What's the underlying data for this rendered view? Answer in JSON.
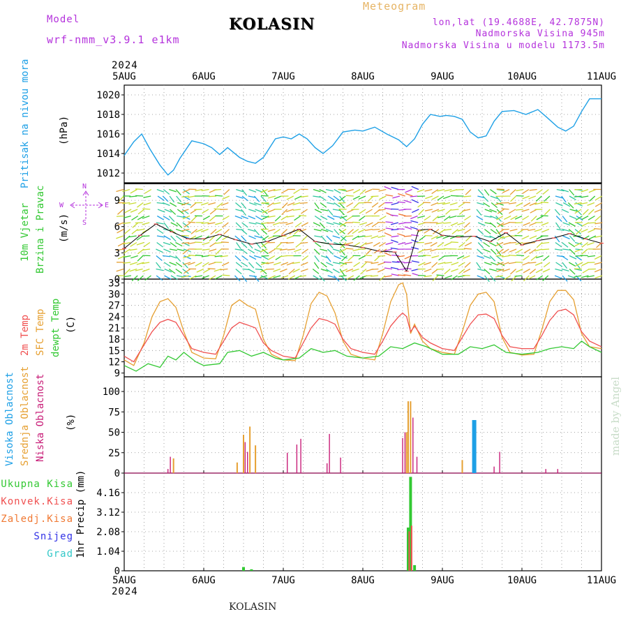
{
  "header": {
    "model_label": "Model",
    "model_name": "wrf-nmm_v3.9.1 e1km",
    "station": "KOLASIN",
    "meteogram_label": "Meteogram",
    "coords": "lon,lat (19.4688E, 42.7875N)",
    "elevation": "Nadmorska Visina 945m",
    "model_elevation": "Nadmorska Visina u modelu 1173.5m"
  },
  "footer": {
    "station": "KOLASIN",
    "watermark": "made by Angel"
  },
  "colors": {
    "pressure": "#1ea0e6",
    "temp2m": "#f05050",
    "sfc": "#e6a032",
    "dewpt": "#32c832",
    "high_cloud": "#1ea0e6",
    "mid_cloud": "#e6a032",
    "low_cloud": "#c81e78",
    "total_precip": "#32c832",
    "conv_precip": "#f05050",
    "frozen_precip": "#f07832",
    "snow": "#3232e6",
    "hail": "#32c8c8",
    "wind_label": "#32c832",
    "wind_sub": "#32c832",
    "compass": "#b432dc"
  },
  "time_axis": {
    "year_top": "2024",
    "year_bottom": "2024",
    "days": [
      "5AUG",
      "6AUG",
      "7AUG",
      "8AUG",
      "9AUG",
      "10AUG",
      "11AUG"
    ]
  },
  "panels": {
    "pressure": {
      "label": "Pritisak na nivou mora",
      "unit": "(hPa)",
      "ticks": [
        "1012",
        "1014",
        "1016",
        "1018",
        "1020"
      ]
    },
    "wind": {
      "label1": "10m Vjetar",
      "label2": "Brzina i Pravac",
      "unit": "(m/s)",
      "compass_n": "N",
      "compass_w": "W",
      "compass_e": "E",
      "compass_s": "S",
      "ticks": [
        "0",
        "3",
        "6",
        "9"
      ]
    },
    "temperature": {
      "label1": "2m Temp",
      "label2": "SFC Temp",
      "label3": "dewpt Temp",
      "unit": "(C)",
      "ticks": [
        "9",
        "12",
        "15",
        "18",
        "21",
        "24",
        "27",
        "30",
        "33"
      ]
    },
    "clouds": {
      "label1": "Visoka Oblacnost",
      "label2": "Srednja Oblacnost",
      "label3": "Niska Oblacnost",
      "unit": "(%)",
      "ticks": [
        "0",
        "25",
        "50",
        "75",
        "100"
      ]
    },
    "precip": {
      "label_unit": "1hr Precip (mm)",
      "legend": [
        "Ukupna Kisa",
        "Konvek.Kisa",
        "Zaledj.Kisa",
        "Snijeg",
        "Grad"
      ],
      "ticks": [
        "0",
        "1.04",
        "2.08",
        "3.12",
        "4.16"
      ]
    }
  },
  "chart_data": [
    {
      "type": "line",
      "title": "Pritisak na nivou mora",
      "ylabel": "(hPa)",
      "ylim": [
        1011,
        1021
      ],
      "x_unit": "day offset from 5AUG 2024 00UTC",
      "series": [
        {
          "x": [
            0,
            0.12,
            0.22,
            0.32,
            0.45,
            0.55,
            0.62,
            0.7,
            0.85,
            1.0,
            1.1,
            1.2,
            1.3,
            1.45,
            1.55,
            1.65,
            1.75,
            1.9,
            2.0,
            2.1,
            2.2,
            2.3,
            2.4,
            2.5,
            2.62,
            2.75,
            2.9,
            3.0,
            3.15,
            3.3,
            3.45,
            3.55,
            3.65,
            3.75,
            3.85,
            3.97,
            4.05,
            4.15,
            4.25,
            4.35,
            4.45,
            4.55,
            4.65,
            4.75,
            4.9,
            5.05,
            5.2,
            5.3,
            5.45,
            5.55,
            5.65,
            5.75,
            5.85,
            6.0
          ],
          "y": [
            1013.8,
            1015.2,
            1016.0,
            1014.5,
            1012.8,
            1011.8,
            1012.3,
            1013.5,
            1015.3,
            1015.0,
            1014.6,
            1013.9,
            1014.6,
            1013.6,
            1013.2,
            1013.0,
            1013.6,
            1015.5,
            1015.7,
            1015.5,
            1016.0,
            1015.5,
            1014.6,
            1014.0,
            1014.8,
            1016.2,
            1016.4,
            1016.3,
            1016.7,
            1016.0,
            1015.4,
            1014.7,
            1015.5,
            1017.0,
            1018.0,
            1017.8,
            1017.9,
            1017.8,
            1017.5,
            1016.2,
            1015.6,
            1015.8,
            1017.3,
            1018.3,
            1018.4,
            1018.0,
            1018.5,
            1017.8,
            1016.7,
            1016.3,
            1016.8,
            1018.3,
            1019.6,
            1019.6
          ]
        }
      ]
    },
    {
      "type": "scatter",
      "title": "10m Vjetar Brzina i Pravac",
      "ylabel": "(m/s)",
      "ylim": [
        0,
        11
      ],
      "series": [
        {
          "name": "wind speed",
          "x": [
            0,
            0.2,
            0.4,
            0.6,
            0.8,
            1.0,
            1.2,
            1.4,
            1.6,
            1.8,
            2.0,
            2.2,
            2.4,
            2.6,
            2.8,
            3.0,
            3.2,
            3.4,
            3.55,
            3.7,
            3.85,
            4.0,
            4.2,
            4.4,
            4.6,
            4.8,
            5.0,
            5.2,
            5.4,
            5.6,
            5.8,
            6.0
          ],
          "y": [
            3.5,
            5.0,
            6.3,
            5.4,
            4.6,
            4.6,
            5.1,
            4.5,
            4.0,
            4.3,
            5.0,
            5.7,
            4.3,
            4.0,
            3.9,
            3.6,
            3.2,
            3.1,
            0.9,
            5.6,
            5.7,
            5.0,
            4.8,
            4.9,
            4.3,
            5.3,
            3.9,
            4.4,
            4.7,
            5.2,
            4.6,
            4.1
          ]
        }
      ]
    },
    {
      "type": "line",
      "title": "2m Temp / SFC Temp / dewpt Temp",
      "ylabel": "(C)",
      "ylim": [
        8,
        34
      ],
      "series": [
        {
          "name": "2m Temp",
          "x": [
            0,
            0.12,
            0.25,
            0.35,
            0.45,
            0.55,
            0.65,
            0.75,
            0.85,
            1.0,
            1.15,
            1.25,
            1.35,
            1.45,
            1.55,
            1.65,
            1.75,
            1.85,
            2.0,
            2.15,
            2.25,
            2.35,
            2.45,
            2.55,
            2.65,
            2.75,
            2.85,
            3.0,
            3.15,
            3.25,
            3.35,
            3.45,
            3.5,
            3.55,
            3.6,
            3.65,
            3.75,
            3.85,
            4.0,
            4.15,
            4.25,
            4.35,
            4.45,
            4.55,
            4.65,
            4.75,
            4.85,
            5.0,
            5.15,
            5.25,
            5.35,
            5.45,
            5.55,
            5.65,
            5.75,
            5.85,
            6.0
          ],
          "y": [
            13.5,
            12.0,
            16.5,
            20.0,
            22.5,
            23.3,
            22.5,
            19.0,
            15.5,
            14.5,
            14.0,
            17.5,
            21.0,
            22.5,
            21.8,
            21.0,
            17.0,
            15.0,
            13.5,
            13.0,
            17.0,
            21.0,
            23.5,
            23.0,
            22.0,
            18.0,
            15.5,
            14.5,
            14.0,
            17.5,
            21.5,
            24.0,
            25.0,
            24.0,
            20.0,
            21.5,
            18.5,
            17.0,
            15.5,
            15.0,
            18.5,
            22.0,
            24.5,
            24.7,
            23.5,
            19.0,
            16.0,
            15.5,
            15.5,
            19.0,
            23.0,
            25.5,
            26.0,
            24.5,
            20.0,
            17.5,
            16.0
          ]
        },
        {
          "name": "SFC Temp",
          "x": [
            0,
            0.12,
            0.25,
            0.35,
            0.45,
            0.55,
            0.65,
            0.75,
            0.85,
            1.0,
            1.15,
            1.25,
            1.35,
            1.45,
            1.55,
            1.65,
            1.75,
            1.85,
            2.0,
            2.15,
            2.25,
            2.35,
            2.45,
            2.55,
            2.65,
            2.75,
            2.85,
            3.0,
            3.15,
            3.25,
            3.35,
            3.45,
            3.5,
            3.55,
            3.6,
            3.65,
            3.75,
            3.85,
            4.0,
            4.15,
            4.25,
            4.35,
            4.45,
            4.55,
            4.65,
            4.75,
            4.85,
            5.0,
            5.15,
            5.25,
            5.35,
            5.45,
            5.55,
            5.65,
            5.75,
            5.85,
            6.0
          ],
          "y": [
            12.5,
            11.0,
            17.0,
            24.0,
            28.0,
            28.8,
            26.5,
            20.0,
            14.5,
            13.0,
            12.8,
            19.0,
            27.0,
            28.5,
            27.0,
            26.0,
            18.0,
            14.0,
            12.5,
            12.3,
            19.0,
            27.5,
            30.5,
            29.5,
            25.0,
            17.5,
            14.0,
            13.0,
            12.5,
            19.5,
            28.0,
            32.5,
            33.0,
            30.0,
            19.5,
            22.0,
            17.5,
            15.5,
            14.5,
            14.0,
            20.0,
            27.0,
            30.0,
            30.5,
            28.0,
            18.5,
            14.5,
            13.8,
            14.0,
            20.5,
            28.0,
            31.0,
            31.0,
            28.5,
            19.5,
            16.0,
            15.5
          ]
        },
        {
          "name": "dewpt Temp",
          "x": [
            0,
            0.15,
            0.3,
            0.45,
            0.55,
            0.65,
            0.75,
            0.9,
            1.0,
            1.2,
            1.3,
            1.45,
            1.6,
            1.75,
            1.9,
            2.0,
            2.2,
            2.35,
            2.5,
            2.65,
            2.8,
            3.0,
            3.2,
            3.35,
            3.5,
            3.65,
            3.8,
            4.0,
            4.2,
            4.35,
            4.5,
            4.65,
            4.8,
            5.0,
            5.2,
            5.35,
            5.5,
            5.65,
            5.75,
            5.85,
            6.0
          ],
          "y": [
            11.0,
            9.5,
            11.5,
            10.5,
            13.5,
            12.5,
            14.5,
            12.0,
            11.0,
            11.5,
            14.5,
            15.0,
            13.5,
            14.5,
            13.0,
            12.5,
            13.0,
            15.5,
            14.5,
            15.0,
            13.5,
            13.0,
            13.5,
            16.0,
            15.5,
            17.0,
            16.0,
            14.0,
            14.0,
            16.0,
            15.5,
            16.5,
            14.5,
            14.0,
            14.5,
            15.5,
            16.0,
            15.5,
            17.5,
            16.0,
            14.5
          ]
        }
      ]
    },
    {
      "type": "bar",
      "title": "Visoka / Srednja / Niska Oblacnost",
      "ylabel": "(%)",
      "ylim": [
        0,
        100
      ],
      "series": [
        {
          "name": "Visoka Oblacnost",
          "x": [
            4.4
          ],
          "values": [
            65
          ]
        },
        {
          "name": "Srednja Oblacnost",
          "x": [
            0.62,
            1.42,
            1.5,
            1.58,
            1.65,
            3.55,
            3.57,
            3.6,
            4.25
          ],
          "values": [
            18,
            13,
            47,
            57,
            34,
            50,
            88,
            88,
            16
          ]
        },
        {
          "name": "Niska Oblacnost",
          "x": [
            0.55,
            0.58,
            1.52,
            1.55,
            2.05,
            2.17,
            2.22,
            2.55,
            2.58,
            2.72,
            3.5,
            3.53,
            3.63,
            3.68,
            4.65,
            4.72,
            5.3,
            5.45
          ],
          "values": [
            5,
            20,
            38,
            26,
            25,
            35,
            42,
            12,
            48,
            19,
            43,
            50,
            68,
            20,
            8,
            26,
            5,
            5
          ]
        }
      ]
    },
    {
      "type": "bar",
      "title": "1hr Precip",
      "ylabel": "(mm)",
      "ylim": [
        0,
        5.0
      ],
      "series": [
        {
          "name": "Ukupna Kisa",
          "x": [
            1.5,
            1.6,
            3.57,
            3.6,
            3.65
          ],
          "values": [
            0.2,
            0.08,
            2.3,
            5.0,
            0.3
          ]
        },
        {
          "name": "Konvek.Kisa",
          "x": [
            3.57,
            3.6
          ],
          "values": [
            2.1,
            2.4
          ]
        },
        {
          "name": "Zaledj.Kisa",
          "x": [],
          "values": []
        },
        {
          "name": "Snijeg",
          "x": [],
          "values": []
        },
        {
          "name": "Grad",
          "x": [],
          "values": []
        }
      ]
    }
  ]
}
